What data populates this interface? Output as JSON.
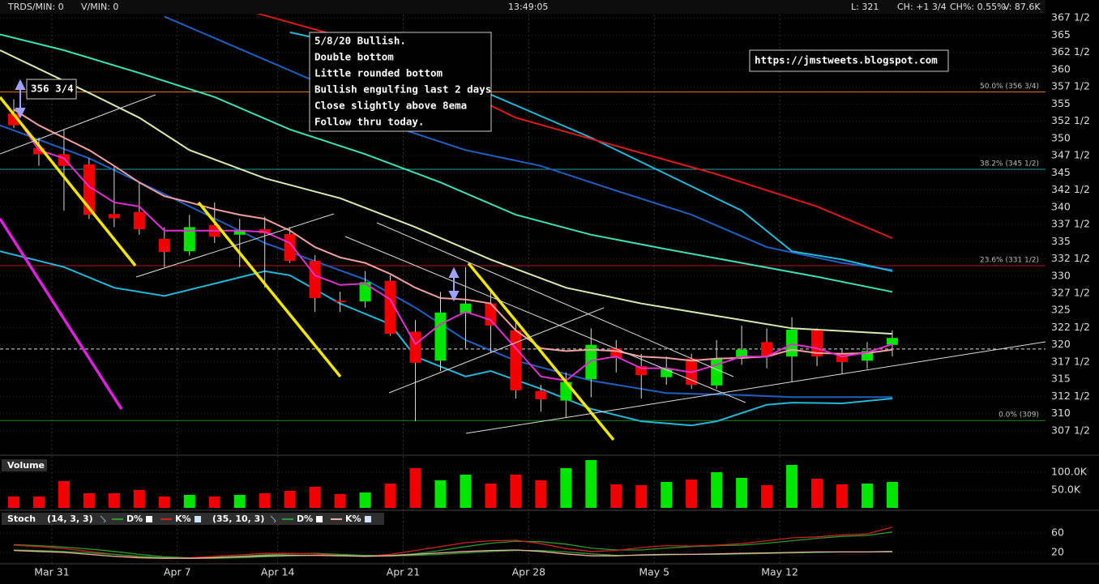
{
  "header": {
    "trades": "TRDS/MIN: 0",
    "vmin": "V/MIN: 0",
    "time": "13:49:05",
    "last": "L: 321",
    "change": "CH: +1 3/4",
    "change_pct": "CH%: 0.55%",
    "volume": "V: 87.6K"
  },
  "chart_data": [
    {
      "type": "candlestick",
      "categories": [
        null,
        null,
        "Mar 31",
        null,
        null,
        null,
        null,
        "Apr 7",
        null,
        null,
        null,
        "Apr 14",
        null,
        null,
        null,
        null,
        "Apr 21",
        null,
        null,
        null,
        null,
        "Apr 28",
        null,
        null,
        null,
        null,
        "May 5",
        null,
        null,
        null,
        null,
        "May 12",
        null,
        null,
        null,
        null
      ],
      "open": [
        353.6,
        348.6,
        347.7,
        346.2,
        339.0,
        339.3,
        335.4,
        333.6,
        337.4,
        336.0,
        336.8,
        336.1,
        332.2,
        326.4,
        326.3,
        329.3,
        321.9,
        317.7,
        324.6,
        326.0,
        322.1,
        313.3,
        311.9,
        315.0,
        319.5,
        316.9,
        315.3,
        318.0,
        314.1,
        318.0,
        320.4,
        318.3,
        322.1,
        318.8,
        317.7,
        320.0
      ],
      "high": [
        355.7,
        350.1,
        351.3,
        347.1,
        345.9,
        343.6,
        337.1,
        338.9,
        340.7,
        338.3,
        338.6,
        337.1,
        333.0,
        327.7,
        330.7,
        330.1,
        323.6,
        327.7,
        331.3,
        327.7,
        323.6,
        314.2,
        316.0,
        322.4,
        320.7,
        318.7,
        318.3,
        318.7,
        320.7,
        322.8,
        322.4,
        324.0,
        322.4,
        319.3,
        320.4,
        322.1
      ],
      "low": [
        351.5,
        346.0,
        339.5,
        338.3,
        337.1,
        336.0,
        331.3,
        333.0,
        334.8,
        331.3,
        328.3,
        331.9,
        324.8,
        324.8,
        325.4,
        321.3,
        308.9,
        316.2,
        319.5,
        318.9,
        312.2,
        310.3,
        309.5,
        312.4,
        316.0,
        312.2,
        314.2,
        313.6,
        313.6,
        317.1,
        316.6,
        314.6,
        316.9,
        315.7,
        316.5,
        318.3
      ],
      "close": [
        351.9,
        347.7,
        346.0,
        338.9,
        338.4,
        336.8,
        333.5,
        337.1,
        335.7,
        336.7,
        336.2,
        332.2,
        326.8,
        326.2,
        329.1,
        321.6,
        317.4,
        324.7,
        326.0,
        322.8,
        313.4,
        312.1,
        314.6,
        320.0,
        318.1,
        315.6,
        316.6,
        314.2,
        318.0,
        319.3,
        318.3,
        322.2,
        318.3,
        317.5,
        319.1,
        321.0
      ],
      "up_color": "#00e600",
      "down_color": "#f00000",
      "ylim": [
        304.2,
        370.1
      ],
      "yticks": [
        {
          "value": 307.5,
          "label": "307 1/2"
        },
        310,
        {
          "value": 312.5,
          "label": "312 1/2"
        },
        315,
        {
          "value": 317.5,
          "label": "317 1/2"
        },
        320,
        {
          "value": 322.5,
          "label": "322 1/2"
        },
        325,
        {
          "value": 327.5,
          "label": "327 1/2"
        },
        330,
        {
          "value": 332.5,
          "label": "332 1/2"
        },
        335,
        {
          "value": 337.5,
          "label": "337 1/2"
        },
        340,
        {
          "value": 342.5,
          "label": "342 1/2"
        },
        345,
        {
          "value": 347.5,
          "label": "347 1/2"
        },
        350,
        {
          "value": 352.5,
          "label": "352 1/2"
        },
        355,
        {
          "value": 357.5,
          "label": "357 1/2"
        },
        360,
        {
          "value": 362.5,
          "label": "362 1/2"
        },
        365,
        {
          "value": 367.5,
          "label": "367 1/2"
        }
      ],
      "grid": true,
      "overlays": [
        {
          "color": "#1f5fc0",
          "x": [
            -0.55,
            3,
            6,
            10,
            14,
            16,
            18,
            20,
            23,
            26,
            29,
            31,
            35
          ],
          "values": [
            351.9,
            347.1,
            341.9,
            334.8,
            329.5,
            325.4,
            320.7,
            317.7,
            314.8,
            313.0,
            312.7,
            312.4,
            312.4
          ]
        },
        {
          "color": "#22b8d8",
          "x": [
            -0.55,
            2,
            4,
            6,
            8,
            10,
            11,
            13,
            15,
            16,
            18,
            19,
            21,
            23,
            25,
            27,
            28,
            30,
            31,
            33,
            35
          ],
          "values": [
            333.6,
            331.3,
            328.3,
            327.1,
            328.9,
            330.7,
            330.1,
            326.0,
            323.0,
            318.3,
            315.4,
            316.2,
            313.6,
            310.7,
            308.9,
            308.3,
            308.9,
            311.3,
            311.6,
            311.5,
            312.2
          ]
        },
        {
          "color": "#1f5fc0",
          "x": [
            6,
            9,
            12,
            15,
            18,
            21,
            24,
            27,
            30,
            33,
            35
          ],
          "values": [
            367.7,
            363.0,
            358.3,
            351.9,
            348.3,
            346.0,
            342.4,
            338.9,
            334.2,
            331.9,
            330.9
          ]
        },
        {
          "color": "#22b8d8",
          "x": [
            11,
            14,
            17,
            20,
            23,
            26,
            29,
            31,
            33,
            35
          ],
          "values": [
            365.4,
            363.0,
            359.5,
            354.8,
            350.1,
            344.8,
            339.5,
            333.6,
            332.4,
            330.7
          ]
        },
        {
          "color": "#3ee0b8",
          "x": [
            -0.55,
            2,
            5,
            8,
            11,
            14,
            17,
            20,
            23,
            26,
            29,
            32,
            35
          ],
          "values": [
            365.1,
            362.8,
            359.5,
            356.0,
            351.3,
            347.7,
            343.6,
            338.9,
            336.0,
            333.9,
            331.9,
            329.9,
            327.7
          ]
        },
        {
          "color": "#d8ecb0",
          "x": [
            -0.55,
            3,
            5,
            7,
            10,
            13,
            16,
            19,
            22,
            25,
            28,
            31,
            35
          ],
          "values": [
            362.8,
            356.6,
            353.0,
            348.3,
            344.2,
            341.3,
            337.1,
            332.4,
            328.3,
            326.0,
            324.2,
            322.4,
            321.6
          ]
        },
        {
          "color": "#e01818",
          "x": [
            8,
            13,
            17,
            20,
            24,
            28,
            32,
            35
          ],
          "values": [
            369.9,
            364.8,
            358.3,
            353.0,
            348.9,
            344.8,
            340.1,
            335.5
          ]
        },
        {
          "color": "#f0a0a0",
          "x": [
            0,
            1,
            2,
            3,
            4,
            5,
            6,
            7,
            8,
            9,
            10,
            11,
            12,
            13,
            14,
            15,
            16,
            17,
            18,
            19,
            20,
            21,
            22,
            23,
            24,
            25,
            26,
            27,
            28,
            29,
            30,
            31,
            32,
            33,
            34,
            35
          ],
          "values": [
            354.2,
            351.9,
            350.1,
            348.3,
            346.0,
            343.6,
            341.6,
            340.7,
            339.7,
            338.9,
            338.3,
            336.6,
            334.2,
            332.7,
            331.9,
            330.3,
            328.3,
            326.8,
            326.6,
            326.0,
            322.1,
            319.5,
            319.1,
            319.3,
            319.1,
            318.3,
            318.1,
            317.7,
            318.0,
            318.1,
            318.3,
            319.3,
            318.8,
            318.7,
            318.8,
            319.3
          ]
        },
        {
          "color": "#e030d0",
          "x": [
            0,
            1,
            2,
            3,
            4,
            5,
            6,
            7,
            8,
            9,
            10,
            11,
            12,
            13,
            14,
            15,
            16,
            17,
            18,
            19,
            20,
            21,
            22,
            23,
            24,
            25,
            26,
            27,
            28,
            29,
            30,
            31,
            32,
            33,
            34,
            35
          ],
          "values": [
            353.6,
            348.3,
            347.1,
            343.0,
            340.7,
            340.1,
            336.6,
            336.6,
            336.6,
            336.6,
            336.4,
            334.8,
            330.1,
            328.7,
            328.9,
            326.6,
            320.1,
            323.0,
            324.8,
            323.6,
            319.5,
            315.4,
            314.8,
            317.7,
            318.3,
            316.6,
            316.6,
            316.0,
            317.1,
            318.3,
            318.3,
            320.1,
            319.5,
            318.3,
            318.9,
            320.1
          ]
        }
      ],
      "levels": [
        {
          "value": 356.75,
          "label": "50.0% (356 3/4)",
          "color": "#e07810"
        },
        {
          "value": 345.5,
          "label": "38.2% (345 1/2)",
          "color": "#1aa0a8"
        },
        {
          "value": 331.5,
          "label": "23.6% (331 1/2)",
          "color": "#b01818"
        },
        {
          "value": 309,
          "label": "0.0% (309)",
          "color": "#1c8a1c"
        }
      ],
      "price_line": 319.4,
      "note": [
        "5/8/20 Bullish.",
        "Double bottom",
        "Little rounded bottom",
        "Bullish engulfing last 2 days",
        "Close slightly above 8ema",
        "Follow thru today."
      ],
      "url": "https://jmstweets.blogspot.com",
      "marker": "356 3/4"
    },
    {
      "type": "bar",
      "title": "Volume",
      "values": [
        31800,
        31800,
        75000,
        40900,
        40900,
        50000,
        31800,
        36400,
        31800,
        36400,
        40900,
        47700,
        59100,
        38600,
        43200,
        68200,
        111400,
        77300,
        93200,
        68200,
        93200,
        77300,
        111400,
        134100,
        65900,
        63600,
        72700,
        79500,
        100000,
        84100,
        63600,
        120500,
        81800,
        65900,
        68200,
        72700
      ],
      "ylim": [
        0,
        138600
      ],
      "yticks": [
        {
          "value": 50000,
          "label": "50.0K"
        },
        {
          "value": 100000,
          "label": "100.0K"
        }
      ]
    },
    {
      "type": "line",
      "title": "Stoch",
      "ylim": [
        0,
        100
      ],
      "yticks": [
        20,
        60
      ],
      "studies": [
        {
          "params": "(14, 3, 3)",
          "series": [
            {
              "name": "D%",
              "color": "#2a9a2a",
              "values": [
                36,
                34,
                31,
                27,
                22,
                16,
                11,
                9,
                10,
                12,
                15,
                17,
                18,
                16,
                14,
                14,
                17,
                24,
                32,
                39,
                43,
                42,
                37,
                29,
                25,
                25,
                29,
                32,
                34,
                35,
                39,
                44,
                49,
                53,
                55,
                62
              ]
            },
            {
              "name": "K%",
              "color": "#d02020",
              "values": [
                35,
                32,
                28,
                22,
                16,
                10,
                8,
                9,
                12,
                15,
                18,
                18,
                17,
                14,
                12,
                16,
                24,
                32,
                40,
                44,
                45,
                38,
                28,
                22,
                24,
                30,
                34,
                33,
                35,
                38,
                44,
                50,
                52,
                56,
                58,
                72
              ]
            }
          ]
        },
        {
          "params": "(35, 10, 3)",
          "series": [
            {
              "name": "D%",
              "color": "#2a9a2a",
              "values": [
                25,
                24,
                22,
                19,
                16,
                12,
                9,
                8,
                8,
                9,
                11,
                13,
                14,
                14,
                13,
                13,
                14,
                16,
                19,
                22,
                24,
                24,
                21,
                17,
                14,
                14,
                15,
                16,
                16,
                17,
                18,
                19,
                20,
                21,
                21,
                21
              ]
            },
            {
              "name": "K%",
              "color": "#f0b0a0",
              "values": [
                24,
                22,
                20,
                16,
                12,
                9,
                8,
                8,
                9,
                11,
                13,
                14,
                14,
                13,
                12,
                13,
                16,
                19,
                22,
                24,
                25,
                22,
                17,
                13,
                13,
                15,
                16,
                16,
                17,
                18,
                19,
                20,
                21,
                21,
                21,
                22
              ]
            }
          ]
        }
      ]
    }
  ]
}
